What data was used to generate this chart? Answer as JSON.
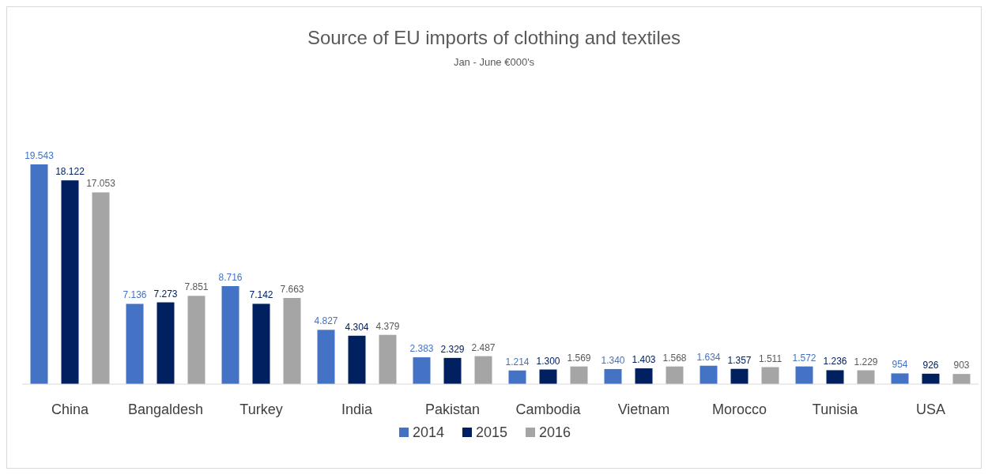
{
  "chart_data": {
    "type": "bar",
    "title": "Source of EU imports of clothing and textiles",
    "subtitle": "Jan - June €000's",
    "categories": [
      "China",
      "Bangaldesh",
      "Turkey",
      "India",
      "Pakistan",
      "Cambodia",
      "Vietnam",
      "Morocco",
      "Tunisia",
      "USA"
    ],
    "series": [
      {
        "name": "2014",
        "color": "#4472c4",
        "values": [
          19543,
          7136,
          8716,
          4827,
          2383,
          1214,
          1340,
          1634,
          1572,
          954
        ],
        "value_labels": [
          "19.543",
          "7.136",
          "8.716",
          "4.827",
          "2.383",
          "1.214",
          "1.340",
          "1.634",
          "1.572",
          "954"
        ]
      },
      {
        "name": "2015",
        "color": "#002060",
        "values": [
          18122,
          7273,
          7142,
          4304,
          2329,
          1300,
          1403,
          1357,
          1236,
          926
        ],
        "value_labels": [
          "18.122",
          "7.273",
          "7.142",
          "4.304",
          "2.329",
          "1.300",
          "1.403",
          "1.357",
          "1.236",
          "926"
        ]
      },
      {
        "name": "2016",
        "color": "#a5a5a5",
        "values": [
          17053,
          7851,
          7663,
          4379,
          2487,
          1569,
          1568,
          1511,
          1229,
          903
        ],
        "value_labels": [
          "17.053",
          "7.851",
          "7.663",
          "4.379",
          "2.487",
          "1.569",
          "1.568",
          "1.511",
          "1.229",
          "903"
        ]
      }
    ],
    "legend": "bottom"
  }
}
